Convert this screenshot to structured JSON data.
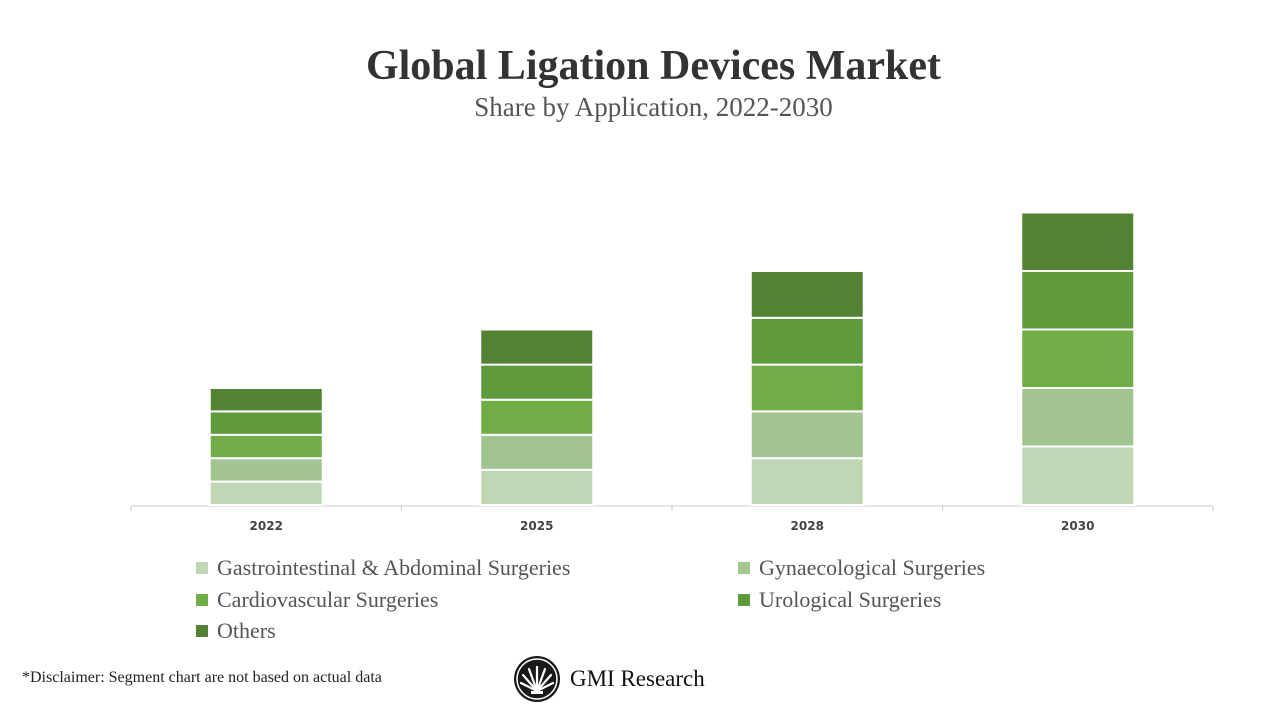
{
  "chart_data": {
    "type": "bar",
    "stacked": true,
    "title": "Global Ligation Devices Market",
    "subtitle": "Share by Application, 2022-2030",
    "categories": [
      "2022",
      "2025",
      "2028",
      "2030"
    ],
    "series": [
      {
        "name": "Gastrointestinal & Abdominal Surgeries",
        "color": "#bfd7b5",
        "values": [
          2,
          3,
          4,
          5
        ]
      },
      {
        "name": "Gynaecological Surgeries",
        "color": "#a2c490",
        "values": [
          2,
          3,
          4,
          5
        ]
      },
      {
        "name": "Cardiovascular Surgeries",
        "color": "#70ad47",
        "values": [
          2,
          3,
          4,
          5
        ]
      },
      {
        "name": "Urological Surgeries",
        "color": "#5f9a3c",
        "values": [
          2,
          3,
          4,
          5
        ]
      },
      {
        "name": "Others",
        "color": "#548235",
        "values": [
          2,
          3,
          4,
          5
        ]
      }
    ],
    "ylim": [
      0,
      25
    ],
    "grid": false,
    "y_axis_shown": false,
    "legend": "bottom"
  },
  "disclaimer": "*Disclaimer:   Segment chart are not based on actual data",
  "brand": "GMI Research"
}
